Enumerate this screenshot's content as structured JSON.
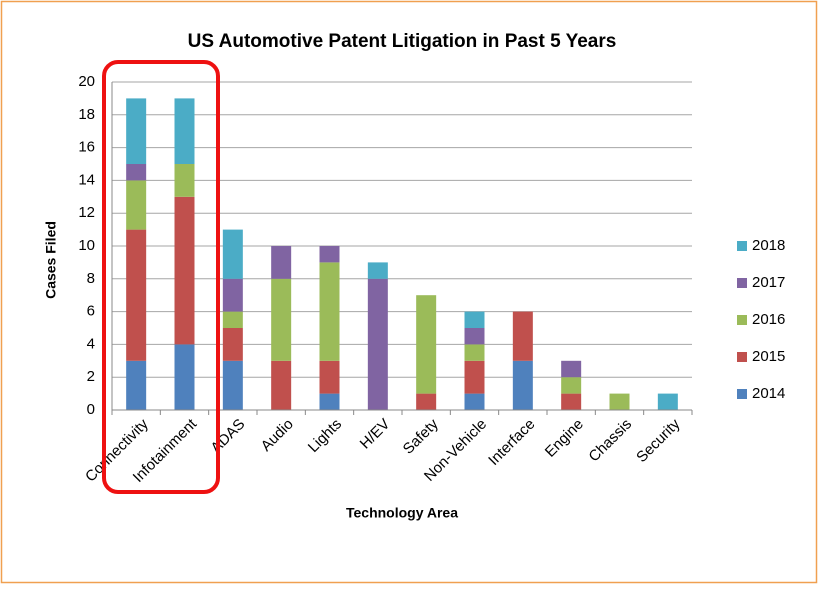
{
  "chart_data": {
    "type": "stacked_bar",
    "title": "US Automotive Patent Litigation in Past 5 Years",
    "x_label": "Technology Area",
    "y_label": "Cases Filed",
    "categories": [
      "Connectivity",
      "Infotainment",
      "ADAS",
      "Audio",
      "Lights",
      "H/EV",
      "Safety",
      "Non-Vehicle",
      "Interface",
      "Engine",
      "Chassis",
      "Security"
    ],
    "series": [
      {
        "name": "2014",
        "color": "#4f81bd",
        "values": [
          3,
          4,
          3,
          0,
          1,
          0,
          0,
          1,
          3,
          0,
          0,
          0
        ]
      },
      {
        "name": "2015",
        "color": "#c0504d",
        "values": [
          8,
          9,
          2,
          3,
          2,
          0,
          1,
          2,
          3,
          1,
          0,
          0
        ]
      },
      {
        "name": "2016",
        "color": "#9bbb59",
        "values": [
          3,
          2,
          1,
          5,
          6,
          0,
          6,
          1,
          0,
          1,
          1,
          0
        ]
      },
      {
        "name": "2017",
        "color": "#8064a2",
        "values": [
          1,
          0,
          2,
          2,
          1,
          8,
          0,
          1,
          0,
          1,
          0,
          0
        ]
      },
      {
        "name": "2018",
        "color": "#4bacc6",
        "values": [
          4,
          4,
          3,
          0,
          0,
          1,
          0,
          1,
          0,
          0,
          0,
          1
        ]
      }
    ],
    "ylim": [
      0,
      20
    ],
    "yticks": [
      0,
      2,
      4,
      6,
      8,
      10,
      12,
      14,
      16,
      18,
      20
    ],
    "grid": true,
    "legend": "right"
  }
}
